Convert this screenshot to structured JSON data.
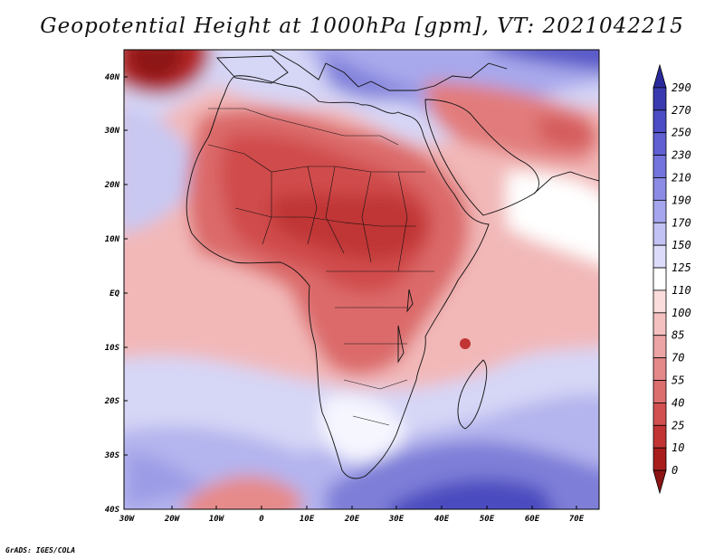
{
  "title": "Geopotential Height at 1000hPa [gpm], VT: 2021042215",
  "footer": "GrADS: IGES/COLA",
  "map": {
    "variable": "Geopotential Height",
    "level": "1000hPa",
    "units": "gpm",
    "valid_time": "2021042215",
    "lat_labels": [
      "40N",
      "30N",
      "20N",
      "10N",
      "EQ",
      "10S",
      "20S",
      "30S",
      "40S"
    ],
    "lon_labels": [
      "30W",
      "20W",
      "10W",
      "0",
      "10E",
      "20E",
      "30E",
      "40E",
      "50E",
      "60E",
      "70E"
    ]
  },
  "colorbar": {
    "levels": [
      "290",
      "270",
      "250",
      "230",
      "210",
      "190",
      "170",
      "150",
      "125",
      "110",
      "100",
      "85",
      "70",
      "55",
      "40",
      "25",
      "10",
      "0"
    ],
    "colors": [
      "#2a2a9a",
      "#3a3ab0",
      "#4c4cc6",
      "#6060d2",
      "#7474de",
      "#8c8ce6",
      "#a6a6ee",
      "#c2c2f4",
      "#dcdcfa",
      "#ffffff",
      "#fadcdc",
      "#f4c0c0",
      "#eca4a4",
      "#e48888",
      "#dc6e6e",
      "#d25050",
      "#c23434",
      "#a81c1c",
      "#8c1414"
    ]
  }
}
